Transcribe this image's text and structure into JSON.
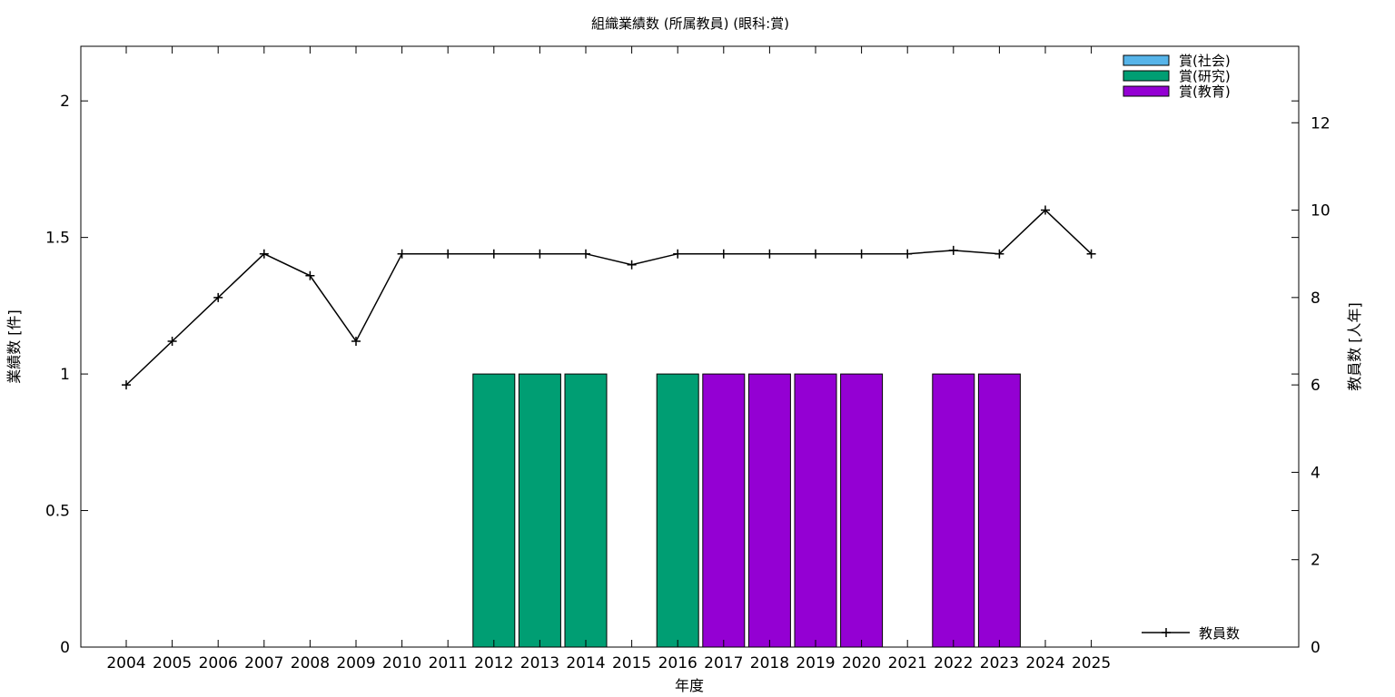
{
  "chart_data": {
    "type": "bar",
    "title": "組織業績数 (所属教員) (眼科:賞)",
    "xlabel": "年度",
    "ylabel_left": "業績数 [件]",
    "ylabel_right": "教員数 [人年]",
    "ylim_left": [
      0,
      2.2
    ],
    "ylim_right": [
      0,
      13.75
    ],
    "yticks_left": [
      "0",
      "0.5",
      "1",
      "1.5",
      "2"
    ],
    "yticks_right": [
      "0",
      "2",
      "4",
      "6",
      "8",
      "10",
      "12"
    ],
    "grid": false,
    "legend_position": "top-right",
    "categories": [
      "2004",
      "2005",
      "2006",
      "2007",
      "2008",
      "2009",
      "2010",
      "2011",
      "2012",
      "2013",
      "2014",
      "2015",
      "2016",
      "2017",
      "2018",
      "2019",
      "2020",
      "2021",
      "2022",
      "2023",
      "2024",
      "2025"
    ],
    "series": [
      {
        "name": "賞(社会)",
        "color": "#56b4e9",
        "values": [
          0,
          0,
          0,
          0,
          0,
          0,
          0,
          0,
          0,
          0,
          0,
          0,
          0,
          0,
          0,
          0,
          0,
          0,
          0,
          0,
          0,
          0
        ]
      },
      {
        "name": "賞(研究)",
        "color": "#009e73",
        "values": [
          0,
          0,
          0,
          0,
          0,
          0,
          0,
          0,
          1,
          1,
          1,
          0,
          1,
          0,
          0,
          0,
          0,
          0,
          0,
          0,
          0,
          0
        ]
      },
      {
        "name": "賞(教育)",
        "color": "#9400d3",
        "values": [
          0,
          0,
          0,
          0,
          0,
          0,
          0,
          0,
          0,
          0,
          0,
          0,
          0,
          1,
          1,
          1,
          1,
          0,
          1,
          1,
          0,
          0
        ]
      }
    ],
    "line_series": {
      "name": "教員数",
      "axis": "right",
      "color": "#000000",
      "values": [
        6,
        7,
        8,
        9,
        8.5,
        7,
        9,
        9,
        9,
        9,
        9,
        8.75,
        9,
        9,
        9,
        9,
        9,
        9,
        9.08,
        9,
        10,
        9
      ]
    }
  }
}
